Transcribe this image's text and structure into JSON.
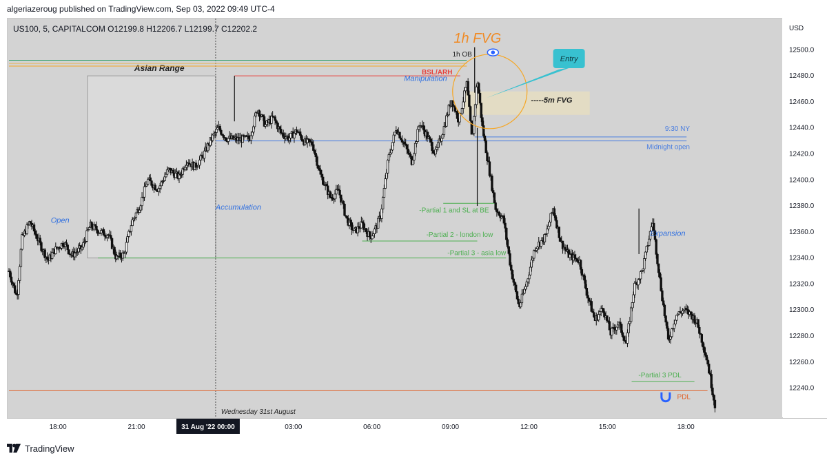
{
  "header": {
    "published": "algeriazeroug published on TradingView.com, Sep 03, 2022 09:49 UTC-4"
  },
  "footer": {
    "brand": "TradingView"
  },
  "chart_data": {
    "type": "candlestick",
    "symbol_label": "US100, 5, CAPITALCOM",
    "ohlc_readout": {
      "open": "O12199.8",
      "high": "H12206.7",
      "low": "L12199.7",
      "close": "C12202.2"
    },
    "currency": "USD",
    "ylim": [
      12217,
      12524
    ],
    "y_ticks": [
      12240.0,
      12260.0,
      12280.0,
      12300.0,
      12320.0,
      12340.0,
      12360.0,
      12380.0,
      12400.0,
      12420.0,
      12440.0,
      12460.0,
      12480.0,
      12500.0
    ],
    "x_range_hours": [
      16.1,
      18.8
    ],
    "x_ticks": [
      {
        "h": 18,
        "label": "18:00"
      },
      {
        "h": 21,
        "label": "21:00"
      },
      {
        "h": 24,
        "label": "31 Aug '22   00:00",
        "highlight": true
      },
      {
        "h": 27,
        "label": "03:00"
      },
      {
        "h": 30,
        "label": "06:00"
      },
      {
        "h": 33,
        "label": "09:00"
      },
      {
        "h": 36,
        "label": "12:00"
      },
      {
        "h": 39,
        "label": "15:00"
      },
      {
        "h": 42,
        "label": "18:00"
      }
    ],
    "day_separator": {
      "h": 24,
      "label": "Wednesday 31st August"
    },
    "price_path": [
      [
        16.1,
        12330
      ],
      [
        16.4,
        12310
      ],
      [
        16.6,
        12355
      ],
      [
        16.9,
        12368
      ],
      [
        17.3,
        12350
      ],
      [
        17.6,
        12338
      ],
      [
        17.8,
        12345
      ],
      [
        18.2,
        12352
      ],
      [
        18.5,
        12342
      ],
      [
        18.9,
        12348
      ],
      [
        19.2,
        12365
      ],
      [
        19.6,
        12360
      ],
      [
        19.9,
        12358
      ],
      [
        20.2,
        12340
      ],
      [
        20.5,
        12343
      ],
      [
        20.8,
        12368
      ],
      [
        21.1,
        12380
      ],
      [
        21.4,
        12400
      ],
      [
        21.8,
        12393
      ],
      [
        22.2,
        12408
      ],
      [
        22.6,
        12402
      ],
      [
        22.9,
        12415
      ],
      [
        23.2,
        12410
      ],
      [
        23.5,
        12418
      ],
      [
        23.8,
        12430
      ],
      [
        24.1,
        12440
      ],
      [
        24.4,
        12432
      ],
      [
        24.9,
        12431
      ],
      [
        25.3,
        12432
      ],
      [
        25.6,
        12455
      ],
      [
        25.9,
        12442
      ],
      [
        26.2,
        12448
      ],
      [
        26.5,
        12436
      ],
      [
        26.8,
        12432
      ],
      [
        27.1,
        12438
      ],
      [
        27.4,
        12429
      ],
      [
        27.7,
        12428
      ],
      [
        28.0,
        12404
      ],
      [
        28.4,
        12386
      ],
      [
        28.7,
        12392
      ],
      [
        29.0,
        12370
      ],
      [
        29.3,
        12360
      ],
      [
        29.6,
        12366
      ],
      [
        29.9,
        12356
      ],
      [
        30.1,
        12362
      ],
      [
        30.3,
        12372
      ],
      [
        30.6,
        12416
      ],
      [
        30.9,
        12440
      ],
      [
        31.2,
        12428
      ],
      [
        31.5,
        12414
      ],
      [
        31.8,
        12444
      ],
      [
        32.1,
        12433
      ],
      [
        32.4,
        12420
      ],
      [
        32.7,
        12438
      ],
      [
        33.0,
        12462
      ],
      [
        33.3,
        12446
      ],
      [
        33.6,
        12474
      ],
      [
        33.8,
        12430
      ],
      [
        34.0,
        12478
      ],
      [
        34.2,
        12440
      ],
      [
        34.4,
        12415
      ],
      [
        34.7,
        12378
      ],
      [
        35.0,
        12370
      ],
      [
        35.3,
        12330
      ],
      [
        35.6,
        12302
      ],
      [
        35.9,
        12322
      ],
      [
        36.2,
        12348
      ],
      [
        36.6,
        12356
      ],
      [
        36.9,
        12378
      ],
      [
        37.2,
        12352
      ],
      [
        37.5,
        12342
      ],
      [
        37.9,
        12338
      ],
      [
        38.2,
        12312
      ],
      [
        38.5,
        12292
      ],
      [
        38.8,
        12302
      ],
      [
        39.1,
        12282
      ],
      [
        39.4,
        12290
      ],
      [
        39.7,
        12274
      ],
      [
        40.0,
        12318
      ],
      [
        40.3,
        12330
      ],
      [
        40.7,
        12368
      ],
      [
        41.0,
        12320
      ],
      [
        41.3,
        12276
      ],
      [
        41.6,
        12296
      ],
      [
        41.9,
        12300
      ],
      [
        42.2,
        12296
      ],
      [
        42.4,
        12290
      ],
      [
        42.6,
        12276
      ],
      [
        42.8,
        12260
      ],
      [
        43.1,
        12225
      ]
    ],
    "candle_spikes": [
      {
        "h": 24.72,
        "high": 12480
      },
      {
        "h": 40.18,
        "high": 12378
      },
      {
        "h": 33.9,
        "high": 12502
      },
      {
        "h": 34.0,
        "low": 12380
      }
    ],
    "level_lines": [
      {
        "name": "bsl-arh-line",
        "price": 12487.5,
        "from_h": 16.1,
        "to_h": 33.6,
        "color": "#f6a623",
        "label": "BSL/ARH",
        "label_color": "#e8403a"
      },
      {
        "name": "bsl-arh-line-2",
        "price": 12489.5,
        "from_h": 16.1,
        "to_h": 33.6,
        "color": "#e8b458"
      },
      {
        "name": "top-green-line",
        "price": 12492,
        "from_h": 16.1,
        "to_h": 33.6,
        "color": "#2e9e68"
      },
      {
        "name": "red-high-line",
        "price": 12480,
        "from_h": 24.72,
        "to_h": 33.35,
        "color": "#e8403a"
      },
      {
        "name": "nine-thirty-line",
        "price": 12433,
        "from_h": 33.9,
        "to_h": 42.0,
        "color": "#4a7ee0",
        "label": "9:30 NY"
      },
      {
        "name": "midnight-open-line",
        "price": 12430,
        "from_h": 24.0,
        "to_h": 42.0,
        "color": "#4a7ee0",
        "label": "Midnight open"
      },
      {
        "name": "partial-1-line",
        "price": 12382,
        "from_h": 32.7,
        "to_h": 34.7,
        "color": "#4caf50",
        "label": "-Partial 1 and SL at BE"
      },
      {
        "name": "partial-2-line",
        "price": 12353,
        "from_h": 29.6,
        "to_h": 34.0,
        "color": "#4caf50",
        "label": "-Partial 2 - london low"
      },
      {
        "name": "partial-3-line",
        "price": 12340,
        "from_h": 19.5,
        "to_h": 35.1,
        "color": "#4caf50",
        "label": "-Partial 3 - asia low"
      },
      {
        "name": "partial-3-pdl-line",
        "price": 12245,
        "from_h": 39.9,
        "to_h": 42.3,
        "color": "#4caf50",
        "label": "-Partial 3 PDL"
      },
      {
        "name": "pdl-line",
        "price": 12238,
        "from_h": 16.1,
        "to_h": 42.8,
        "color": "#e0622a",
        "label": "PDL"
      }
    ],
    "asian_range_box": {
      "from_h": 19.1,
      "to_h": 24.0,
      "top": 12480,
      "bottom": 12340,
      "label": "Asian Range"
    },
    "fvg_5m_box": {
      "from_h": 33.5,
      "to_h": 38.3,
      "top": 12468,
      "bottom": 12450,
      "label": "-----5m FVG"
    },
    "fvg_1h_label": "1h FVG",
    "ob_1h_label": "1h OB",
    "entry_label": "Entry",
    "phase_labels": {
      "open": "Open",
      "accumulation": "Accumulation",
      "manipulation": "Manipulation",
      "expansion": "Expansion"
    },
    "colors": {
      "candle": "#111111",
      "chart_bg": "#d3d3d3",
      "fvg_circle": "#f6a623",
      "entry_callout": "#38c1d0",
      "phase_text": "#2f6fe0"
    }
  }
}
